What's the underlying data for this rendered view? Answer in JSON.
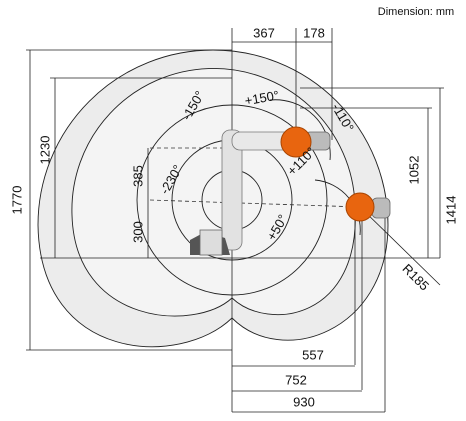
{
  "note": "Dimension: mm",
  "labels": [
    "367",
    "178",
    "-150°",
    "+150°",
    "-110°",
    "+110°",
    "1230",
    "385",
    "-230°",
    "300",
    "+50°",
    "1052",
    "1414",
    "1770",
    "R185",
    "557",
    "752",
    "930"
  ]
}
